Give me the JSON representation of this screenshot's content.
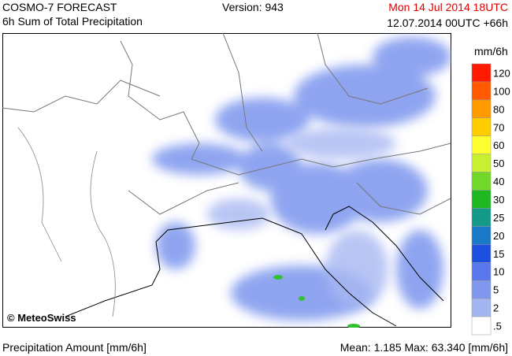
{
  "header": {
    "model": "COSMO-7 FORECAST",
    "product": "6h Sum of Total Precipitation",
    "version": "Version: 943",
    "valid": "Mon 14 Jul 2014 18UTC",
    "run": "12.07.2014 00UTC +66h"
  },
  "map": {
    "copyright": "© MeteoSwiss"
  },
  "legend": {
    "unit": "mm/6h",
    "items": [
      {
        "label": "120",
        "color": "#ff1a00"
      },
      {
        "label": "100",
        "color": "#ff5a00"
      },
      {
        "label": "80",
        "color": "#ff9a00"
      },
      {
        "label": "70",
        "color": "#ffcc00"
      },
      {
        "label": "60",
        "color": "#ffff30"
      },
      {
        "label": "50",
        "color": "#c8f030"
      },
      {
        "label": "40",
        "color": "#70d828"
      },
      {
        "label": "30",
        "color": "#20b820"
      },
      {
        "label": "25",
        "color": "#139a88"
      },
      {
        "label": "20",
        "color": "#1a78c8"
      },
      {
        "label": "15",
        "color": "#1e50e0"
      },
      {
        "label": "10",
        "color": "#5a78ee"
      },
      {
        "label": "5",
        "color": "#7f98ee"
      },
      {
        "label": "2",
        "color": "#a4b6f2"
      },
      {
        "label": ".5",
        "color": "#ffffff"
      }
    ]
  },
  "footer": {
    "amount": "Precipitation Amount [mm/6h]",
    "stats": "Mean:   1.185 Max:  63.340 [mm/6h]"
  }
}
